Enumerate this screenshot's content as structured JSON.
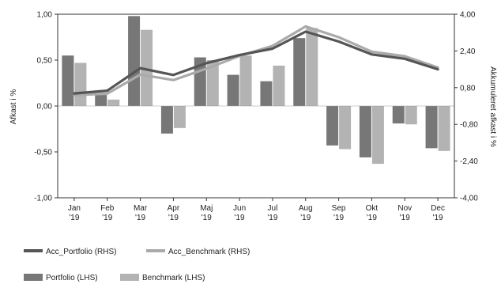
{
  "chart_data": {
    "type": "bar+line",
    "categories": [
      [
        "Jan",
        "'19"
      ],
      [
        "Feb",
        "'19"
      ],
      [
        "Mar",
        "'19"
      ],
      [
        "Apr",
        "'19"
      ],
      [
        "Maj",
        "'19"
      ],
      [
        "Jun",
        "'19"
      ],
      [
        "Jul",
        "'19"
      ],
      [
        "Aug",
        "'19"
      ],
      [
        "Sep",
        "'19"
      ],
      [
        "Okt",
        "'19"
      ],
      [
        "Nov",
        "'19"
      ],
      [
        "Dec",
        "'19"
      ]
    ],
    "ylabel_left": "Afkast i %",
    "ylabel_right": "Akkumuleret afkast i %",
    "ylim_left": [
      -1.0,
      1.0
    ],
    "ylim_right": [
      -4.0,
      4.0
    ],
    "yticks_left": [
      "1,00",
      "0,50",
      "0,00",
      "-0,50",
      "-1,00"
    ],
    "yticks_right": [
      "4,00",
      "2,40",
      "0,80",
      "-0,80",
      "-2,40",
      "-4,00"
    ],
    "grid": false,
    "legend_position": "bottom",
    "bar_series": [
      {
        "name": "Portfolio (LHS)",
        "color": "#777777",
        "values": [
          0.55,
          0.12,
          0.98,
          -0.3,
          0.53,
          0.34,
          0.27,
          0.74,
          -0.43,
          -0.56,
          -0.19,
          -0.46
        ]
      },
      {
        "name": "Benchmark (LHS)",
        "color": "#b3b3b3",
        "values": [
          0.47,
          0.07,
          0.83,
          -0.24,
          0.5,
          0.55,
          0.44,
          0.85,
          -0.47,
          -0.63,
          -0.2,
          -0.49
        ]
      }
    ],
    "line_series": [
      {
        "name": "Acc_Portfolio (RHS)",
        "color": "#555555",
        "values": [
          0.55,
          0.67,
          1.65,
          1.35,
          1.87,
          2.22,
          2.5,
          3.24,
          2.81,
          2.25,
          2.06,
          1.6
        ]
      },
      {
        "name": "Acc_Benchmark (RHS)",
        "color": "#aaaaaa",
        "values": [
          0.47,
          0.54,
          1.37,
          1.13,
          1.63,
          2.18,
          2.62,
          3.47,
          3.0,
          2.37,
          2.17,
          1.68
        ]
      }
    ],
    "legend": {
      "acc_portfolio": "Acc_Portfolio (RHS)",
      "acc_benchmark": "Acc_Benchmark (RHS)",
      "portfolio": "Portfolio (LHS)",
      "benchmark": "Benchmark (LHS)"
    }
  }
}
